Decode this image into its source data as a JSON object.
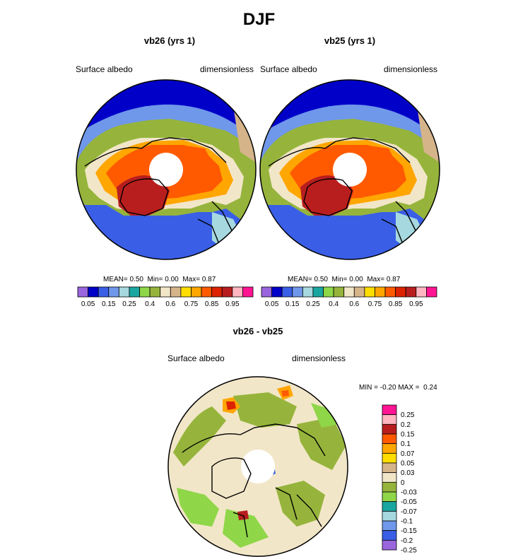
{
  "figure": {
    "title": "DJF"
  },
  "panels": [
    {
      "title": "vb26 (yrs 1)",
      "variable": "Surface albedo",
      "units": "dimensionless",
      "stats": {
        "mean_label": "MEAN=",
        "mean": "0.50",
        "min_label": "Min=",
        "min": "0.00",
        "max_label": "Max=",
        "max": "0.87"
      }
    },
    {
      "title": "vb25 (yrs 1)",
      "variable": "Surface albedo",
      "units": "dimensionless",
      "stats": {
        "mean_label": "MEAN=",
        "mean": "0.50",
        "min_label": "Min=",
        "min": "0.00",
        "max_label": "Max=",
        "max": "0.87"
      }
    },
    {
      "title": "vb26 - vb25",
      "variable": "Surface albedo",
      "units": "dimensionless",
      "stats": {
        "min_label": "MIN =",
        "min": "-0.20",
        "max_label": "MAX =",
        "max": "0.24"
      }
    }
  ],
  "chart_data": [
    {
      "type": "heatmap",
      "projection": "north-polar-stereographic",
      "title": "vb26 (yrs 1)",
      "variable": "Surface albedo",
      "units": "dimensionless",
      "mean": 0.5,
      "min": 0.0,
      "max": 0.87,
      "colorbar": {
        "orientation": "horizontal",
        "colors": [
          "#9966dd",
          "#0000c8",
          "#3a5fe6",
          "#6f97ea",
          "#a6d8e0",
          "#1aa6a0",
          "#8fd648",
          "#96b43c",
          "#f2e6c8",
          "#d6b48a",
          "#ffdd00",
          "#ffa600",
          "#ff5a00",
          "#dd2200",
          "#b81e1e",
          "#ffb6c1",
          "#ff1493"
        ],
        "levels": [
          0.05,
          0.1,
          0.15,
          0.2,
          0.25,
          0.3,
          0.4,
          0.5,
          0.6,
          0.7,
          0.75,
          0.8,
          0.85,
          0.9,
          0.95
        ],
        "tick_labels": [
          "0.05",
          "0.15",
          "0.25",
          "0.4",
          "0.6",
          "0.75",
          "0.85",
          "0.95"
        ]
      }
    },
    {
      "type": "heatmap",
      "projection": "north-polar-stereographic",
      "title": "vb25 (yrs 1)",
      "variable": "Surface albedo",
      "units": "dimensionless",
      "mean": 0.5,
      "min": 0.0,
      "max": 0.87,
      "colorbar": {
        "orientation": "horizontal",
        "colors": [
          "#9966dd",
          "#0000c8",
          "#3a5fe6",
          "#6f97ea",
          "#a6d8e0",
          "#1aa6a0",
          "#8fd648",
          "#96b43c",
          "#f2e6c8",
          "#d6b48a",
          "#ffdd00",
          "#ffa600",
          "#ff5a00",
          "#dd2200",
          "#b81e1e",
          "#ffb6c1",
          "#ff1493"
        ],
        "levels": [
          0.05,
          0.1,
          0.15,
          0.2,
          0.25,
          0.3,
          0.4,
          0.5,
          0.6,
          0.7,
          0.75,
          0.8,
          0.85,
          0.9,
          0.95
        ],
        "tick_labels": [
          "0.05",
          "0.15",
          "0.25",
          "0.4",
          "0.6",
          "0.75",
          "0.85",
          "0.95"
        ]
      }
    },
    {
      "type": "heatmap",
      "projection": "north-polar-stereographic",
      "title": "vb26 - vb25",
      "variable": "Surface albedo",
      "units": "dimensionless",
      "min": -0.2,
      "max": 0.24,
      "colorbar": {
        "orientation": "vertical",
        "colors_top_to_bottom": [
          "#ff1493",
          "#ffb6c1",
          "#b81e1e",
          "#ff5a00",
          "#ffa600",
          "#ffdd00",
          "#d6b48a",
          "#f2e6c8",
          "#96b43c",
          "#8fd648",
          "#1aa6a0",
          "#a6d8e0",
          "#6f97ea",
          "#3a5fe6",
          "#9966dd"
        ],
        "tick_labels_top_to_bottom": [
          "0.25",
          "0.2",
          "0.15",
          "0.1",
          "0.07",
          "0.05",
          "0.03",
          "0",
          "-0.03",
          "-0.05",
          "-0.07",
          "-0.1",
          "-0.15",
          "-0.2",
          "-0.25"
        ]
      }
    }
  ]
}
